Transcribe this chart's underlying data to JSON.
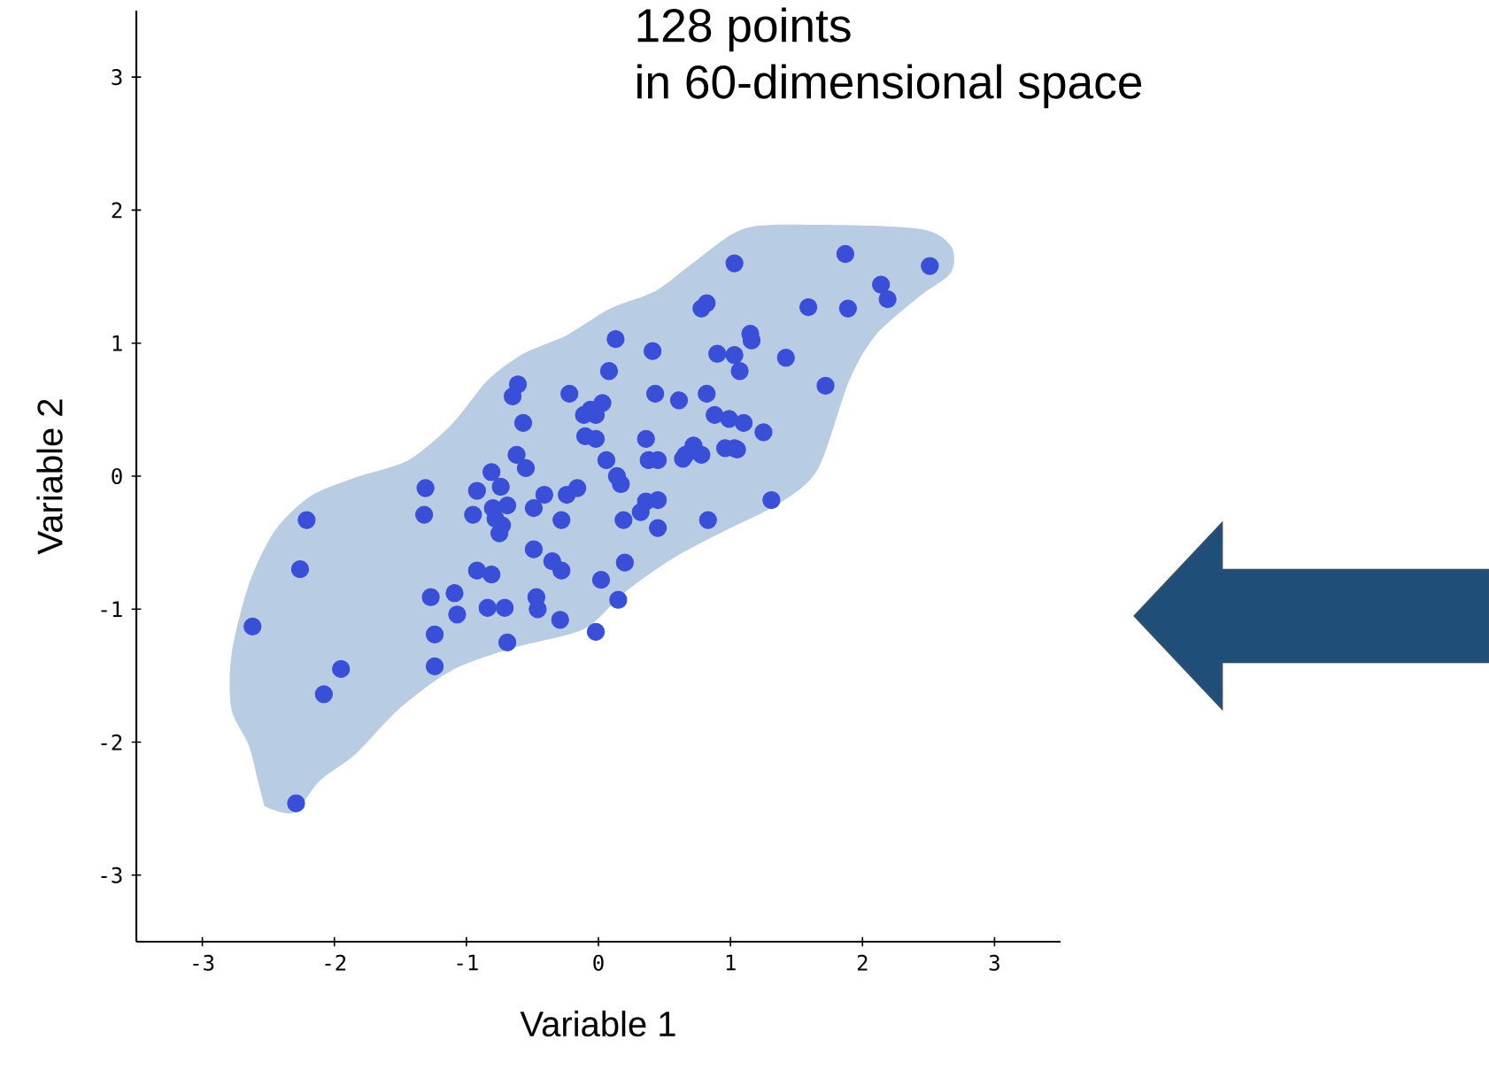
{
  "chart_data": {
    "type": "scatter",
    "title": "128 points",
    "subtitle": "in 60-dimensional space",
    "xlabel": "Variable 1",
    "ylabel": "Variable 2",
    "xlim": [
      -3.5,
      3.5
    ],
    "ylim": [
      -3.5,
      3.5
    ],
    "xticks": [
      -3,
      -2,
      -1,
      0,
      1,
      2,
      3
    ],
    "yticks": [
      -3,
      -2,
      -1,
      0,
      1,
      2,
      3
    ],
    "series": [
      {
        "type": "area",
        "color": "#b8cce4",
        "x": [
          -2.53,
          -2.31,
          -2.11,
          -1.84,
          -1.51,
          -1.11,
          -0.64,
          -0.11,
          0.19,
          0.56,
          0.96,
          1.36,
          1.66,
          1.9,
          2.1,
          2.43,
          2.67,
          2.67,
          2.43,
          1.63,
          1.1,
          0.7,
          0.43,
          0.09,
          -0.24,
          -0.57,
          -0.84,
          -1.11,
          -1.44,
          -1.84,
          -2.18,
          -2.45,
          -2.65,
          -2.78,
          -2.78,
          -2.65,
          -2.58
        ],
        "values": [
          -2.48,
          -2.53,
          -2.29,
          -2.09,
          -1.75,
          -1.46,
          -1.29,
          -1.15,
          -0.88,
          -0.62,
          -0.41,
          -0.21,
          0.05,
          0.72,
          1.06,
          1.35,
          1.53,
          1.73,
          1.86,
          1.89,
          1.86,
          1.59,
          1.39,
          1.26,
          1.06,
          0.92,
          0.72,
          0.39,
          0.12,
          -0.01,
          -0.15,
          -0.41,
          -0.82,
          -1.35,
          -1.75,
          -2.02,
          -2.29
        ]
      },
      {
        "marker": "circle",
        "color": "#3a4fd8",
        "x": [
          0.13,
          0.08,
          -0.61,
          -0.65,
          -0.22,
          -0.06,
          0.03,
          -0.11,
          -0.02,
          -0.57,
          -0.1,
          -0.02,
          -0.62,
          -0.55,
          0.06,
          0.14,
          0.17,
          -1.31,
          -0.81,
          -0.92,
          -0.74,
          -1.32,
          -0.95,
          -0.8,
          -0.69,
          -0.73,
          -0.78,
          -0.75,
          -0.49,
          -0.41,
          -0.24,
          -0.16,
          -0.28,
          0.19,
          -2.21,
          -2.26,
          -0.49,
          -0.35,
          -0.28,
          0.2,
          -0.92,
          -0.81,
          0.02,
          -1.27,
          -1.09,
          -1.07,
          -0.84,
          -0.71,
          -0.47,
          -0.46,
          0.15,
          -0.29,
          -0.02,
          -2.62,
          -1.24,
          -0.69,
          -1.24,
          -1.95,
          -2.08,
          -2.29,
          1.03,
          1.87,
          2.51,
          2.14,
          2.19,
          1.59,
          1.89,
          0.82,
          0.78,
          1.15,
          1.16,
          0.41,
          0.9,
          1.03,
          1.07,
          1.42,
          1.72,
          0.43,
          0.61,
          0.82,
          0.88,
          0.99,
          1.1,
          1.25,
          0.36,
          0.38,
          0.45,
          0.66,
          0.72,
          0.78,
          0.64,
          0.96,
          1.03,
          1.05,
          0.36,
          0.45,
          0.32,
          0.45,
          0.83,
          1.31
        ],
        "values": [
          1.03,
          0.79,
          0.69,
          0.6,
          0.62,
          0.5,
          0.55,
          0.46,
          0.46,
          0.4,
          0.3,
          0.28,
          0.16,
          0.06,
          0.12,
          0.0,
          -0.06,
          -0.09,
          0.03,
          -0.11,
          -0.08,
          -0.29,
          -0.29,
          -0.24,
          -0.22,
          -0.37,
          -0.32,
          -0.43,
          -0.24,
          -0.14,
          -0.14,
          -0.09,
          -0.33,
          -0.33,
          -0.33,
          -0.7,
          -0.55,
          -0.64,
          -0.71,
          -0.65,
          -0.71,
          -0.74,
          -0.78,
          -0.91,
          -0.88,
          -1.04,
          -0.99,
          -0.99,
          -0.91,
          -1.0,
          -0.93,
          -1.08,
          -1.17,
          -1.13,
          -1.19,
          -1.25,
          -1.43,
          -1.45,
          -1.64,
          -2.46,
          1.6,
          1.67,
          1.58,
          1.44,
          1.33,
          1.27,
          1.26,
          1.3,
          1.26,
          1.07,
          1.02,
          0.94,
          0.92,
          0.91,
          0.79,
          0.89,
          0.68,
          0.62,
          0.57,
          0.62,
          0.46,
          0.43,
          0.4,
          0.33,
          0.28,
          0.12,
          0.12,
          0.16,
          0.23,
          0.16,
          0.13,
          0.21,
          0.21,
          0.2,
          -0.19,
          -0.18,
          -0.27,
          -0.39,
          -0.33,
          -0.18
        ]
      }
    ]
  }
}
